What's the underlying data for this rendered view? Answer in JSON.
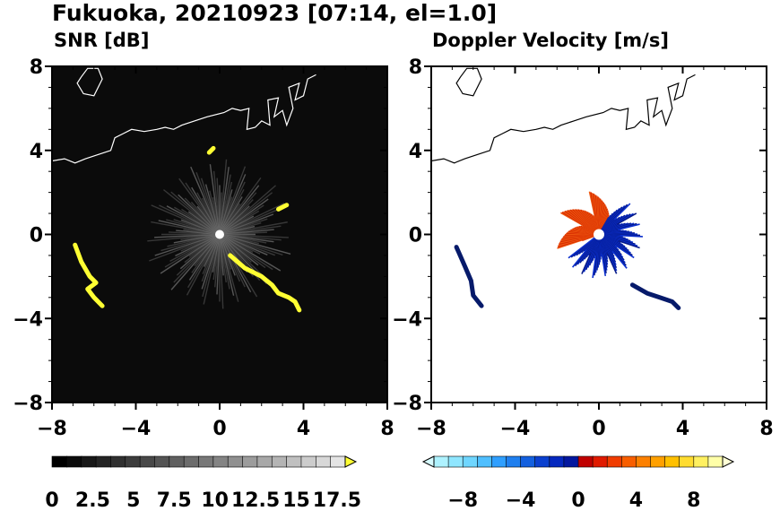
{
  "title": "Fukuoka, 20210923 [07:14, el=1.0]",
  "panels": [
    {
      "id": "snr",
      "subtitle": "SNR [dB]"
    },
    {
      "id": "doppler",
      "subtitle": "Doppler Velocity [m/s]"
    }
  ],
  "chart_data": [
    {
      "type": "heatmap",
      "panel": "snr",
      "title": "SNR [dB]",
      "xlim": [
        -8,
        8
      ],
      "ylim": [
        -8,
        8
      ],
      "xticks": [
        "−8",
        "−4",
        "0",
        "4",
        "8"
      ],
      "yticks": [
        "8",
        "4",
        "0",
        "−4",
        "−8"
      ],
      "colorbar": {
        "labels": [
          "0",
          "2.5",
          "5",
          "7.5",
          "10",
          "12.5",
          "15",
          "17.5"
        ],
        "range": [
          0,
          18
        ],
        "colors": [
          "#000000",
          "#0c0c0c",
          "#181818",
          "#242424",
          "#303030",
          "#3c3c3c",
          "#484848",
          "#545454",
          "#606060",
          "#6c6c6c",
          "#787878",
          "#848484",
          "#909090",
          "#9c9c9c",
          "#a8a8a8",
          "#b4b4b4",
          "#c0c0c0",
          "#cccccc",
          "#d8d8d8",
          "#e4e4e4"
        ],
        "extend_color": "#ffff33"
      },
      "background": "#0b0b0b",
      "echo_color": "#ffff33",
      "echoes": [
        {
          "name": "west-band",
          "points": [
            [
              -6.9,
              -0.5
            ],
            [
              -6.6,
              -1.3
            ],
            [
              -6.2,
              -2.0
            ],
            [
              -5.9,
              -2.3
            ],
            [
              -6.3,
              -2.6
            ],
            [
              -6.0,
              -3.0
            ],
            [
              -5.6,
              -3.4
            ]
          ]
        },
        {
          "name": "southeast-band",
          "points": [
            [
              0.5,
              -1.0
            ],
            [
              1.2,
              -1.6
            ],
            [
              2.0,
              -2.0
            ],
            [
              2.5,
              -2.4
            ],
            [
              2.8,
              -2.8
            ],
            [
              3.3,
              -3.0
            ],
            [
              3.6,
              -3.2
            ],
            [
              3.8,
              -3.6
            ]
          ]
        },
        {
          "name": "ne-spot",
          "points": [
            [
              2.8,
              1.2
            ],
            [
              3.2,
              1.4
            ]
          ]
        },
        {
          "name": "north-spot",
          "points": [
            [
              -0.5,
              3.9
            ],
            [
              -0.3,
              4.1
            ]
          ]
        }
      ]
    },
    {
      "type": "heatmap",
      "panel": "doppler",
      "title": "Doppler Velocity [m/s]",
      "xlim": [
        -8,
        8
      ],
      "ylim": [
        -8,
        8
      ],
      "xticks": [
        "−8",
        "−4",
        "0",
        "4",
        "8"
      ],
      "yticks": [
        "8",
        "4",
        "0",
        "−4",
        "−8"
      ],
      "colorbar": {
        "labels": [
          "−8",
          "−4",
          "0",
          "4",
          "8"
        ],
        "range": [
          -10,
          10
        ],
        "colors": [
          "#aef2ff",
          "#8fe6ff",
          "#6fd6ff",
          "#4fbfff",
          "#2f9fff",
          "#1f7fef",
          "#1360df",
          "#0a40cf",
          "#0528bf",
          "#03179f",
          "#c00000",
          "#e01a00",
          "#f03c00",
          "#f85e00",
          "#fc8000",
          "#ffa000",
          "#ffc000",
          "#ffdc30",
          "#fff060",
          "#ffffa8"
        ],
        "extend_low": "#d6fbff",
        "extend_high": "#ffffd6"
      },
      "echoes": [
        {
          "name": "west-band",
          "color": "#061a6a",
          "points": [
            [
              -6.8,
              -0.6
            ],
            [
              -6.4,
              -1.5
            ],
            [
              -6.1,
              -2.2
            ],
            [
              -6.0,
              -2.9
            ],
            [
              -5.6,
              -3.4
            ]
          ]
        },
        {
          "name": "southeast-band",
          "color": "#061a6a",
          "points": [
            [
              1.6,
              -2.4
            ],
            [
              2.3,
              -2.8
            ],
            [
              2.9,
              -3.0
            ],
            [
              3.5,
              -3.2
            ],
            [
              3.8,
              -3.5
            ]
          ]
        }
      ]
    }
  ]
}
